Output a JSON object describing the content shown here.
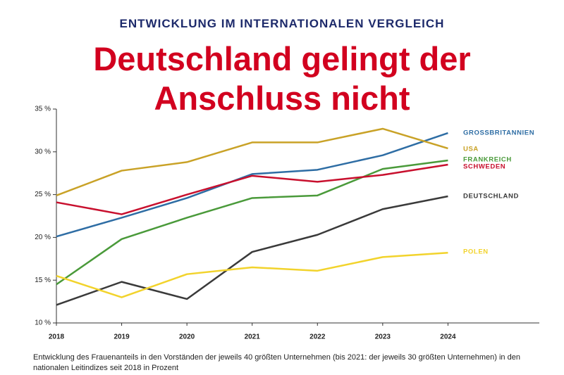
{
  "chart_data": {
    "type": "line",
    "subtitle": "ENTWICKLUNG IM INTERNATIONALEN VERGLEICH",
    "title": "Deutschland gelingt der Anschluss nicht",
    "caption": "Entwicklung des Frauenanteils in den Vorständen der jeweils 40 größten Unternehmen (bis 2021: der jeweils 30 größten Unternehmen) in den nationalen Leitindizes seit 2018 in Prozent",
    "x": [
      2018,
      2019,
      2020,
      2021,
      2022,
      2023,
      2024
    ],
    "xlim": [
      2018,
      2025.4
    ],
    "xticks": [
      2018,
      2019,
      2020,
      2021,
      2022,
      2023,
      2024
    ],
    "ylim": [
      10,
      35
    ],
    "yticks": [
      {
        "value": 10,
        "label": "10 %"
      },
      {
        "value": 15,
        "label": "15 %"
      },
      {
        "value": 20,
        "label": "20 %"
      },
      {
        "value": 25,
        "label": "25 %"
      },
      {
        "value": 30,
        "label": "30 %"
      },
      {
        "value": 35,
        "label": "35 %"
      }
    ],
    "grid": false,
    "series": [
      {
        "name": "GROSSBRITANNIEN",
        "color": "#2e6da4",
        "values": [
          20.1,
          22.3,
          24.6,
          27.4,
          27.9,
          29.6,
          32.2
        ]
      },
      {
        "name": "USA",
        "color": "#c9a227",
        "values": [
          24.9,
          27.8,
          28.8,
          31.1,
          31.1,
          32.7,
          30.4
        ]
      },
      {
        "name": "FRANKREICH",
        "color": "#4a9a3a",
        "values": [
          14.5,
          19.8,
          22.3,
          24.6,
          24.9,
          28.0,
          29.0
        ]
      },
      {
        "name": "SCHWEDEN",
        "color": "#c8102e",
        "values": [
          24.1,
          22.7,
          25.0,
          27.2,
          26.5,
          27.3,
          28.5
        ]
      },
      {
        "name": "DEUTSCHLAND",
        "color": "#3a3a3a",
        "values": [
          12.1,
          14.8,
          12.8,
          18.3,
          20.3,
          23.3,
          24.8
        ]
      },
      {
        "name": "POLEN",
        "color": "#f2d32c",
        "values": [
          15.5,
          13.0,
          15.7,
          16.5,
          16.1,
          17.7,
          18.2
        ]
      }
    ]
  }
}
